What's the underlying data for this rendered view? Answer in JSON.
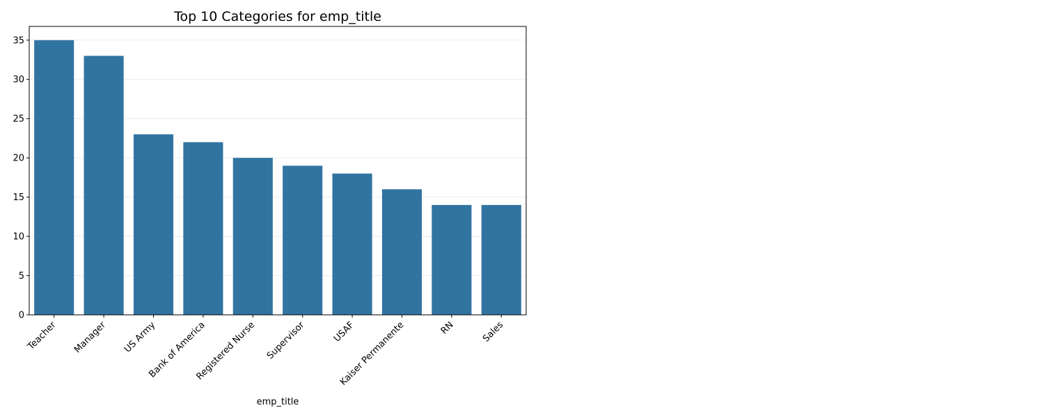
{
  "chart_data": {
    "type": "bar",
    "title": "Top 10 Categories for emp_title",
    "xlabel": "emp_title",
    "ylabel": "",
    "categories": [
      "Teacher",
      "Manager",
      "US Army",
      "Bank of America",
      "Registered Nurse",
      "Supervisor",
      "USAF",
      "Kaiser Permanente",
      "RN",
      "Sales"
    ],
    "values": [
      35,
      33,
      23,
      22,
      20,
      19,
      18,
      16,
      14,
      14
    ],
    "ylim": [
      0,
      36.75
    ],
    "yticks": [
      0,
      5,
      10,
      15,
      20,
      25,
      30,
      35
    ],
    "grid": "y-axis",
    "bar_color": "#3274a1",
    "x_tick_rotation_deg": 45
  }
}
